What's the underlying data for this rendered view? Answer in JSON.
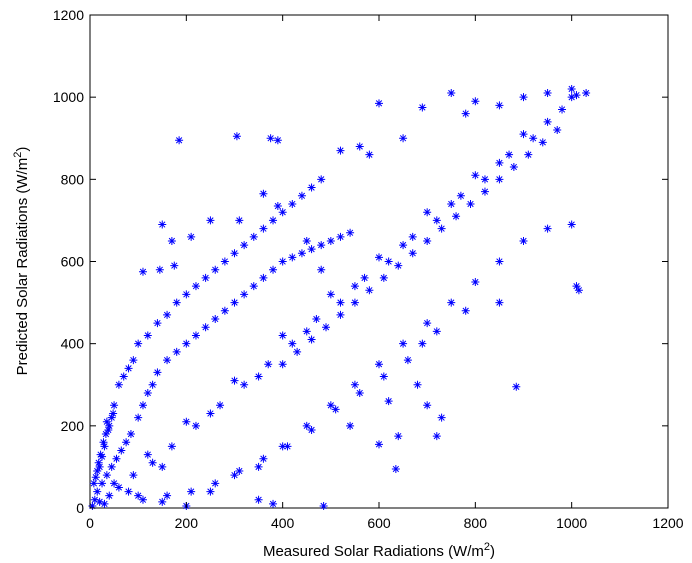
{
  "chart_data": {
    "type": "scatter",
    "title": "",
    "xlabel": "Measured Solar Radiations (W/m",
    "ylabel": "Predicted Solar Radiations (W/m",
    "label_unit_exponent": "2",
    "label_unit_close": ")",
    "xlim": [
      0,
      1200
    ],
    "ylim": [
      0,
      1200
    ],
    "xticks": [
      "0",
      "200",
      "400",
      "600",
      "800",
      "1000",
      "1200"
    ],
    "yticks": [
      "0",
      "200",
      "400",
      "600",
      "800",
      "1000",
      "1200"
    ],
    "marker": "*",
    "marker_color": "#0000ff",
    "grid": false,
    "legend": "none",
    "series": [
      {
        "points": [
          [
            10,
            20
          ],
          [
            30,
            10
          ],
          [
            50,
            60
          ],
          [
            80,
            40
          ],
          [
            120,
            130
          ],
          [
            150,
            100
          ],
          [
            200,
            210
          ],
          [
            250,
            230
          ],
          [
            300,
            310
          ],
          [
            350,
            320
          ],
          [
            400,
            420
          ],
          [
            450,
            430
          ],
          [
            500,
            520
          ],
          [
            550,
            540
          ],
          [
            600,
            610
          ],
          [
            650,
            640
          ],
          [
            700,
            720
          ],
          [
            750,
            740
          ],
          [
            800,
            810
          ],
          [
            850,
            840
          ],
          [
            900,
            910
          ],
          [
            950,
            940
          ],
          [
            1000,
            1000
          ],
          [
            1010,
            1005
          ],
          [
            980,
            970
          ],
          [
            920,
            900
          ],
          [
            870,
            860
          ],
          [
            820,
            800
          ],
          [
            770,
            760
          ],
          [
            720,
            700
          ],
          [
            670,
            660
          ],
          [
            620,
            600
          ],
          [
            570,
            560
          ],
          [
            520,
            500
          ],
          [
            470,
            460
          ],
          [
            420,
            400
          ],
          [
            370,
            350
          ],
          [
            320,
            300
          ],
          [
            270,
            250
          ],
          [
            220,
            200
          ],
          [
            170,
            150
          ],
          [
            130,
            110
          ],
          [
            90,
            80
          ],
          [
            60,
            50
          ],
          [
            40,
            30
          ],
          [
            20,
            15
          ],
          [
            5,
            5
          ],
          [
            15,
            40
          ],
          [
            25,
            60
          ],
          [
            35,
            80
          ],
          [
            45,
            100
          ],
          [
            55,
            120
          ],
          [
            65,
            140
          ],
          [
            75,
            160
          ],
          [
            85,
            180
          ],
          [
            100,
            220
          ],
          [
            110,
            250
          ],
          [
            120,
            280
          ],
          [
            130,
            300
          ],
          [
            140,
            330
          ],
          [
            160,
            360
          ],
          [
            180,
            380
          ],
          [
            200,
            400
          ],
          [
            220,
            420
          ],
          [
            240,
            440
          ],
          [
            260,
            460
          ],
          [
            280,
            480
          ],
          [
            300,
            500
          ],
          [
            320,
            520
          ],
          [
            340,
            540
          ],
          [
            360,
            560
          ],
          [
            380,
            580
          ],
          [
            400,
            600
          ],
          [
            420,
            610
          ],
          [
            440,
            620
          ],
          [
            460,
            630
          ],
          [
            480,
            640
          ],
          [
            500,
            650
          ],
          [
            520,
            660
          ],
          [
            540,
            670
          ],
          [
            150,
            690
          ],
          [
            170,
            650
          ],
          [
            185,
            895
          ],
          [
            305,
            905
          ],
          [
            375,
            900
          ],
          [
            390,
            895
          ],
          [
            600,
            985
          ],
          [
            690,
            975
          ],
          [
            750,
            1010
          ],
          [
            800,
            990
          ],
          [
            520,
            870
          ],
          [
            560,
            880
          ],
          [
            580,
            860
          ],
          [
            650,
            900
          ],
          [
            780,
            960
          ],
          [
            850,
            980
          ],
          [
            900,
            1000
          ],
          [
            950,
            1010
          ],
          [
            1000,
            1020
          ],
          [
            1030,
            1010
          ],
          [
            110,
            575
          ],
          [
            145,
            580
          ],
          [
            175,
            590
          ],
          [
            210,
            660
          ],
          [
            250,
            700
          ],
          [
            310,
            700
          ],
          [
            360,
            765
          ],
          [
            390,
            735
          ],
          [
            450,
            650
          ],
          [
            480,
            580
          ],
          [
            885,
            295
          ],
          [
            635,
            95
          ],
          [
            600,
            155
          ],
          [
            640,
            175
          ],
          [
            720,
            175
          ],
          [
            700,
            250
          ],
          [
            730,
            220
          ],
          [
            540,
            200
          ],
          [
            620,
            260
          ],
          [
            680,
            300
          ],
          [
            350,
            20
          ],
          [
            380,
            10
          ],
          [
            485,
            5
          ],
          [
            200,
            5
          ],
          [
            150,
            15
          ],
          [
            100,
            30
          ],
          [
            250,
            40
          ],
          [
            300,
            80
          ],
          [
            350,
            100
          ],
          [
            400,
            150
          ],
          [
            450,
            200
          ],
          [
            500,
            250
          ],
          [
            550,
            300
          ],
          [
            600,
            350
          ],
          [
            650,
            400
          ],
          [
            700,
            450
          ],
          [
            750,
            500
          ],
          [
            800,
            550
          ],
          [
            850,
            600
          ],
          [
            900,
            650
          ],
          [
            950,
            680
          ],
          [
            1000,
            690
          ],
          [
            1010,
            540
          ],
          [
            1015,
            530
          ],
          [
            850,
            500
          ],
          [
            780,
            480
          ],
          [
            720,
            430
          ],
          [
            690,
            400
          ],
          [
            660,
            360
          ],
          [
            610,
            320
          ],
          [
            560,
            280
          ],
          [
            510,
            240
          ],
          [
            460,
            190
          ],
          [
            410,
            150
          ],
          [
            360,
            120
          ],
          [
            310,
            90
          ],
          [
            260,
            60
          ],
          [
            210,
            40
          ],
          [
            160,
            30
          ],
          [
            110,
            20
          ],
          [
            20,
            100
          ],
          [
            30,
            150
          ],
          [
            40,
            200
          ],
          [
            50,
            250
          ],
          [
            60,
            300
          ],
          [
            70,
            320
          ],
          [
            80,
            340
          ],
          [
            90,
            360
          ],
          [
            35,
            210
          ],
          [
            45,
            220
          ],
          [
            25,
            125
          ],
          [
            15,
            90
          ],
          [
            8,
            60
          ],
          [
            12,
            75
          ],
          [
            18,
            110
          ],
          [
            22,
            130
          ],
          [
            28,
            160
          ],
          [
            33,
            180
          ],
          [
            38,
            190
          ],
          [
            48,
            230
          ],
          [
            100,
            400
          ],
          [
            120,
            420
          ],
          [
            140,
            450
          ],
          [
            160,
            470
          ],
          [
            180,
            500
          ],
          [
            200,
            520
          ],
          [
            220,
            540
          ],
          [
            240,
            560
          ],
          [
            260,
            580
          ],
          [
            280,
            600
          ],
          [
            300,
            620
          ],
          [
            320,
            640
          ],
          [
            340,
            660
          ],
          [
            360,
            680
          ],
          [
            380,
            700
          ],
          [
            400,
            720
          ],
          [
            420,
            740
          ],
          [
            440,
            760
          ],
          [
            460,
            780
          ],
          [
            480,
            800
          ],
          [
            400,
            350
          ],
          [
            430,
            380
          ],
          [
            460,
            410
          ],
          [
            490,
            440
          ],
          [
            520,
            470
          ],
          [
            550,
            500
          ],
          [
            580,
            530
          ],
          [
            610,
            560
          ],
          [
            640,
            590
          ],
          [
            670,
            620
          ],
          [
            700,
            650
          ],
          [
            730,
            680
          ],
          [
            760,
            710
          ],
          [
            790,
            740
          ],
          [
            820,
            770
          ],
          [
            850,
            800
          ],
          [
            880,
            830
          ],
          [
            910,
            860
          ],
          [
            940,
            890
          ],
          [
            970,
            920
          ]
        ]
      }
    ]
  }
}
